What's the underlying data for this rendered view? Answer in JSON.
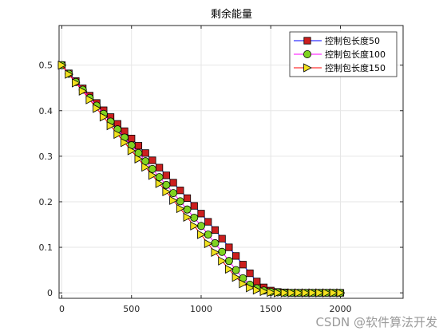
{
  "chart_data": {
    "type": "line",
    "title": "剩余能量",
    "xlabel": "",
    "ylabel": "",
    "xlim": [
      -20,
      2450
    ],
    "ylim": [
      -0.012,
      0.587
    ],
    "xticks": [
      0,
      500,
      1000,
      1500,
      2000
    ],
    "yticks": [
      0,
      0.1,
      0.2,
      0.3,
      0.4,
      0.5
    ],
    "xtick_labels": [
      "0",
      "500",
      "1000",
      "1500",
      "2000"
    ],
    "ytick_labels": [
      "0",
      "0.1",
      "0.2",
      "0.3",
      "0.4",
      "0.5"
    ],
    "grid": true,
    "legend_position": "top-right",
    "x": [
      0,
      50,
      100,
      150,
      200,
      250,
      300,
      350,
      400,
      450,
      500,
      550,
      600,
      650,
      700,
      750,
      800,
      850,
      900,
      950,
      1000,
      1050,
      1100,
      1150,
      1200,
      1250,
      1300,
      1350,
      1400,
      1450,
      1500,
      1550,
      1600,
      1650,
      1700,
      1750,
      1800,
      1850,
      1900,
      1950,
      2000
    ],
    "series": [
      {
        "name": "控制包长度50",
        "marker": "square",
        "line_color": "#0000ff",
        "marker_fill": "#cc1f1f",
        "values": [
          0.5,
          0.482,
          0.465,
          0.449,
          0.433,
          0.417,
          0.401,
          0.386,
          0.371,
          0.355,
          0.339,
          0.323,
          0.307,
          0.291,
          0.275,
          0.258,
          0.242,
          0.225,
          0.208,
          0.191,
          0.174,
          0.156,
          0.138,
          0.119,
          0.1,
          0.081,
          0.062,
          0.043,
          0.025,
          0.012,
          0.005,
          0.002,
          0.001,
          0,
          0,
          0,
          0,
          0,
          0,
          0,
          0
        ]
      },
      {
        "name": "控制包长度100",
        "marker": "circle",
        "line_color": "#ff00ff",
        "marker_fill": "#7fd321",
        "values": [
          0.5,
          0.481,
          0.463,
          0.446,
          0.428,
          0.411,
          0.393,
          0.376,
          0.359,
          0.341,
          0.324,
          0.307,
          0.289,
          0.272,
          0.254,
          0.237,
          0.219,
          0.201,
          0.183,
          0.165,
          0.147,
          0.128,
          0.109,
          0.09,
          0.07,
          0.05,
          0.032,
          0.018,
          0.01,
          0.005,
          0.002,
          0.001,
          0,
          0,
          0,
          0,
          0,
          0,
          0,
          0,
          0
        ]
      },
      {
        "name": "控制包长度150",
        "marker": "triangle-right",
        "line_color": "#ff0000",
        "marker_fill": "#f2e21e",
        "values": [
          0.5,
          0.48,
          0.461,
          0.443,
          0.424,
          0.405,
          0.386,
          0.367,
          0.348,
          0.33,
          0.312,
          0.294,
          0.276,
          0.258,
          0.24,
          0.222,
          0.203,
          0.185,
          0.166,
          0.147,
          0.128,
          0.108,
          0.089,
          0.07,
          0.052,
          0.034,
          0.02,
          0.011,
          0.006,
          0.003,
          0.001,
          0,
          0,
          0,
          0,
          0,
          0,
          0,
          0,
          0,
          0
        ]
      }
    ]
  },
  "watermark": "CSDN @软件算法开发"
}
